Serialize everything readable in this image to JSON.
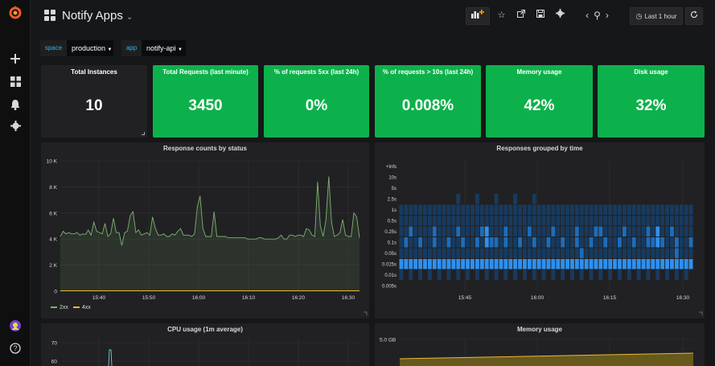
{
  "dashboard": {
    "title": "Notify Apps",
    "caret": "⌄"
  },
  "time": {
    "range": "Last 1 hour"
  },
  "variables": [
    {
      "label": "space",
      "value": "production"
    },
    {
      "label": "app",
      "value": "notify-api"
    }
  ],
  "stats": [
    {
      "title": "Total Instances",
      "value": "10"
    },
    {
      "title": "Total Requests (last minute)",
      "value": "3450"
    },
    {
      "title": "% of requests 5xx (last 24h)",
      "value": "0%"
    },
    {
      "title": "% of requests > 10s (last 24h)",
      "value": "0.008%"
    },
    {
      "title": "Memory usage",
      "value": "42%"
    },
    {
      "title": "Disk usage",
      "value": "32%"
    }
  ],
  "colors": {
    "green": "#0db14b",
    "series_2xx": "#7eb26d",
    "series_4xx": "#eab839",
    "heat_low": "#183a5e",
    "heat_mid": "#1c6dbb",
    "heat_high": "#2e90f0",
    "mem_fill": "#73611b"
  },
  "icons": {
    "logo": "grafana-logo-icon",
    "add": "plus-icon",
    "dashboards": "apps-grid-icon",
    "alerting": "bell-icon",
    "config": "gear-icon",
    "help": "question-icon"
  },
  "panels": {
    "response_counts": {
      "title": "Response counts by status"
    },
    "responses_time": {
      "title": "Responses grouped by time"
    },
    "cpu": {
      "title": "CPU usage (1m average)"
    },
    "memory": {
      "title": "Memory usage"
    }
  },
  "chart_data": [
    {
      "type": "line",
      "title": "Response counts by status",
      "y_ticks": [
        "0",
        "2 K",
        "4 K",
        "6 K",
        "8 K",
        "10 K"
      ],
      "ylim": [
        0,
        10000
      ],
      "x_ticks": [
        "15:40",
        "15:50",
        "16:00",
        "16:10",
        "16:20",
        "16:30"
      ],
      "legend": "bottom-left",
      "grid": true,
      "series": [
        {
          "name": "2xx",
          "color": "#7eb26d",
          "values": [
            4200,
            4600,
            4400,
            4500,
            4400,
            4400,
            4500,
            4300,
            4400,
            4350,
            4700,
            4300,
            5300,
            4600,
            4500,
            4400,
            5200,
            4200,
            4400,
            5600,
            4500,
            4500,
            3500,
            4500,
            4600,
            5800,
            6100,
            4500,
            4700,
            4300,
            4400,
            4500,
            4300,
            5700,
            4800,
            4300,
            4300,
            4400,
            4200,
            4200,
            4400,
            4300,
            4600,
            4800,
            4300,
            4300,
            4300,
            4200,
            4400,
            6500,
            7300,
            4800,
            4200,
            4200,
            4200,
            6100,
            4200,
            4200,
            4200,
            4200,
            4100,
            4100,
            4100,
            4100,
            4100,
            4100,
            4100,
            4000,
            4000,
            4000,
            4000,
            4100,
            4100,
            4000,
            4000,
            4000,
            4000,
            4000,
            4100,
            4300,
            4000,
            4000,
            4300,
            4300,
            4200,
            4300,
            4300,
            4200,
            4800,
            4700,
            4300,
            4200,
            8400,
            5000,
            4200,
            5500,
            8800,
            5300,
            4200,
            4300,
            4500,
            5500,
            4300,
            4200,
            4200,
            6000,
            5700,
            4100
          ]
        },
        {
          "name": "4xx",
          "color": "#eab839",
          "values": [
            30,
            30,
            30,
            30,
            30,
            30,
            30,
            30,
            30,
            30,
            30,
            30,
            30,
            30,
            30,
            30,
            30,
            30,
            30,
            30,
            30,
            30,
            30,
            30,
            30,
            30,
            30,
            30,
            30,
            30,
            30,
            30,
            30,
            30,
            30,
            30,
            30,
            30,
            30,
            30,
            30,
            30,
            30,
            30,
            30,
            30,
            30,
            30,
            30,
            30,
            30,
            30,
            30,
            30,
            30,
            30,
            30,
            30,
            30,
            30,
            30,
            30,
            30,
            30,
            30,
            30,
            30,
            30,
            30,
            30,
            30,
            30,
            30,
            30,
            30,
            30,
            30,
            30,
            30,
            30,
            30,
            30,
            30,
            30,
            30,
            30,
            30,
            30,
            30,
            30,
            30,
            30,
            30,
            30,
            30,
            30,
            30,
            30,
            30,
            30,
            30,
            30,
            30,
            30,
            30,
            30,
            30,
            30
          ]
        }
      ]
    },
    {
      "type": "heatmap",
      "title": "Responses grouped by time",
      "y_buckets": [
        "0.005s",
        "0.01s",
        "0.025s",
        "0.05s",
        "0.1s",
        "0.25s",
        "0.5s",
        "1s",
        "2.5s",
        "5s",
        "10s",
        "+Infs"
      ],
      "x_ticks": [
        "15:45",
        "16:00",
        "16:15",
        "16:30"
      ],
      "grid": true
    },
    {
      "type": "line",
      "title": "CPU usage (1m average)",
      "y_ticks": [
        "60",
        "70"
      ]
    },
    {
      "type": "area",
      "title": "Memory usage",
      "y_ticks": [
        "5.0 GB"
      ]
    }
  ]
}
